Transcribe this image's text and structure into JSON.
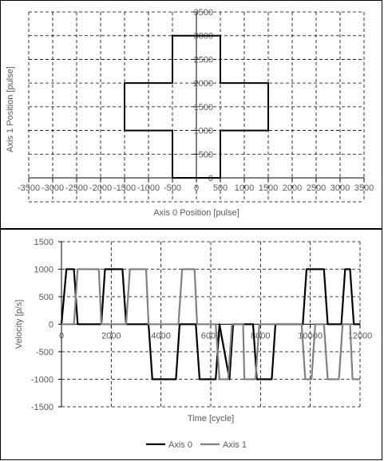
{
  "chart_data": [
    {
      "type": "line",
      "xlabel": "Axis 0 Position [pulse]",
      "ylabel": "Axis 1 Position [pulse]",
      "xlim": [
        -3500,
        3500
      ],
      "ylim": [
        0,
        3500
      ],
      "x_ticks": [
        -3500,
        -3000,
        -2500,
        -2000,
        -1500,
        -1000,
        -500,
        0,
        500,
        1000,
        1500,
        2000,
        2500,
        3000,
        3500
      ],
      "y_ticks": [
        0,
        500,
        1000,
        1500,
        2000,
        2500,
        3000,
        3500
      ],
      "grid": true,
      "series": [
        {
          "color": "#000000",
          "x": [
            0,
            500,
            500,
            1000,
            1500,
            1500,
            1000,
            500,
            500,
            0,
            -500,
            -500,
            -1000,
            -1500,
            -1500,
            -1000,
            -500,
            -500,
            0
          ],
          "y": [
            0,
            0,
            1000,
            1000,
            1000,
            2000,
            2000,
            2000,
            3000,
            3000,
            3000,
            2000,
            2000,
            2000,
            1000,
            1000,
            1000,
            0,
            0
          ]
        }
      ]
    },
    {
      "type": "line",
      "xlabel": "Time [cycle]",
      "ylabel": "Velocity [p/s]",
      "xlim": [
        0,
        12000
      ],
      "ylim": [
        -1500,
        1500
      ],
      "x_ticks": [
        0,
        2000,
        4000,
        6000,
        8000,
        10000,
        12000
      ],
      "y_ticks": [
        -1500,
        -1000,
        -500,
        0,
        500,
        1000,
        1500
      ],
      "grid": true,
      "legend": "bottom",
      "series": [
        {
          "name": "Axis 0",
          "color": "#000000",
          "x": [
            0,
            200,
            500,
            650,
            650,
            1600,
            1750,
            2450,
            2600,
            3500,
            3650,
            4600,
            4750,
            4750,
            5400,
            5550,
            6200,
            6350,
            6350,
            6750,
            6900,
            6900,
            7700,
            7850,
            8450,
            8600,
            9700,
            9850,
            10550,
            10700,
            11250,
            11400,
            11600,
            11750,
            12000
          ],
          "y": [
            0,
            1000,
            1000,
            0,
            0,
            0,
            1000,
            1000,
            0,
            0,
            -1000,
            -1000,
            0,
            0,
            0,
            -1000,
            -1000,
            0,
            0,
            -1000,
            0,
            0,
            0,
            -1000,
            -1000,
            0,
            0,
            1000,
            1000,
            0,
            0,
            1000,
            1000,
            0,
            0
          ]
        },
        {
          "name": "Axis 1",
          "color": "#808080",
          "x": [
            0,
            500,
            650,
            1500,
            1600,
            1600,
            2600,
            2750,
            3400,
            3500,
            3500,
            4700,
            4850,
            5350,
            5450,
            5450,
            6200,
            6350,
            6700,
            6850,
            6850,
            7300,
            7350,
            7800,
            7950,
            8450,
            8600,
            9650,
            9800,
            10050,
            10200,
            10550,
            10700,
            11150,
            11300,
            11600,
            11700,
            12000
          ],
          "y": [
            0,
            0,
            1000,
            1000,
            0,
            0,
            0,
            1000,
            1000,
            0,
            0,
            0,
            1000,
            1000,
            0,
            0,
            0,
            -1000,
            -1000,
            0,
            0,
            0,
            -1000,
            -1000,
            0,
            0,
            0,
            0,
            -1000,
            -1000,
            0,
            0,
            -1000,
            -1000,
            0,
            0,
            -1000,
            -1000
          ]
        }
      ]
    }
  ]
}
